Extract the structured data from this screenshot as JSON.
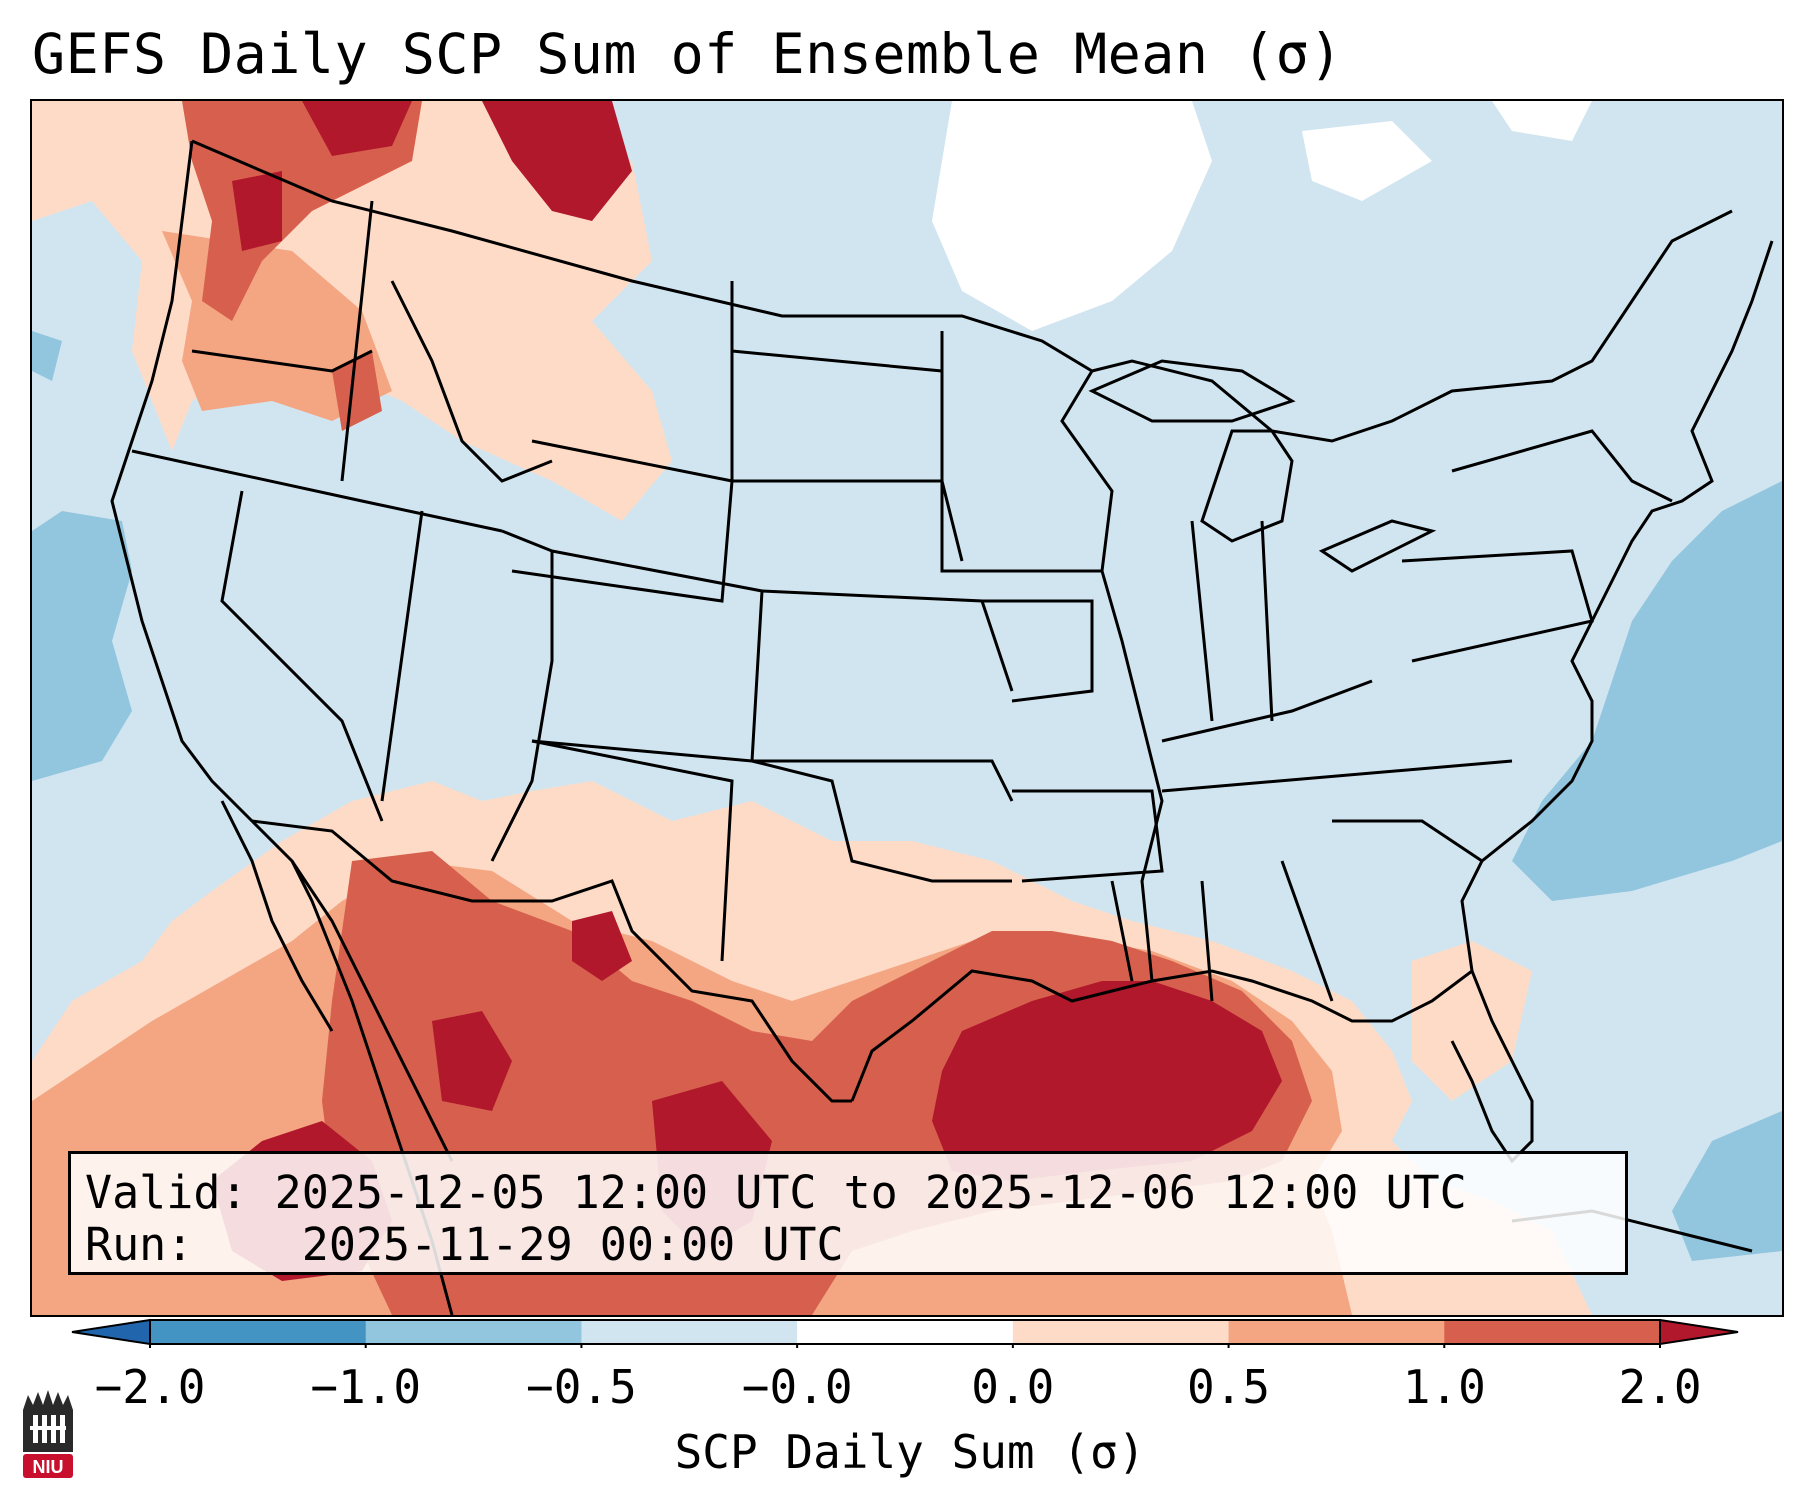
{
  "title": "GEFS Daily SCP Sum of Ensemble Mean (σ)",
  "info": {
    "valid_label": "Valid:",
    "valid_value": "2025-12-05 12:00 UTC to 2025-12-06 12:00 UTC",
    "run_label": "Run:",
    "run_value": "2025-11-29 00:00 UTC"
  },
  "colorbar": {
    "label": "SCP Daily Sum (σ)",
    "ticks": [
      "−2.0",
      "−1.0",
      "−0.5",
      "−0.0",
      "0.0",
      "0.5",
      "1.0",
      "2.0"
    ],
    "colors": [
      "#2166ac",
      "#4393c3",
      "#92c5de",
      "#d1e5f0",
      "#ffffff",
      "#fddbc7",
      "#f4a582",
      "#d6604d",
      "#b2182b"
    ],
    "extend": "both"
  },
  "map": {
    "projection": "Lambert Conformal (CONUS)",
    "field": "Ensemble mean daily SCP sum anomaly",
    "regions_max": [
      "Gulf of Mexico",
      "Northern Mexico",
      "Pacific Northwest"
    ],
    "regions_min": [
      "Western Atlantic",
      "Eastern Pacific"
    ]
  },
  "logo": {
    "text": "NIU",
    "icon": "niu-logo-icon"
  }
}
